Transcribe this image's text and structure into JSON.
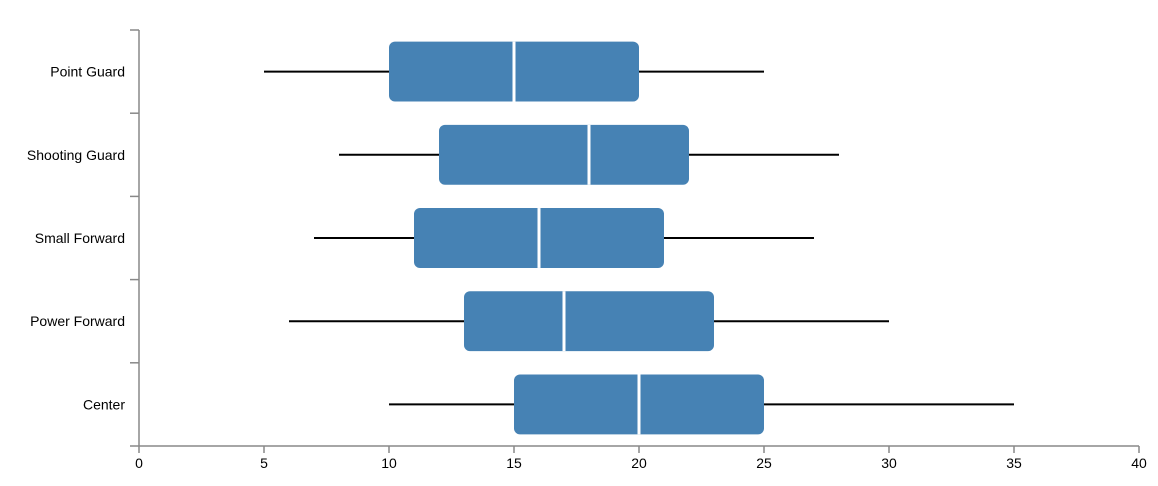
{
  "chart_data": {
    "type": "boxplot",
    "orientation": "horizontal",
    "categories": [
      "Point Guard",
      "Shooting Guard",
      "Small Forward",
      "Power Forward",
      "Center"
    ],
    "series": [
      {
        "boxes": [
          {
            "category": "Point Guard",
            "min": 5,
            "q1": 10,
            "median": 15,
            "q3": 20,
            "max": 25
          },
          {
            "category": "Shooting Guard",
            "min": 8,
            "q1": 12,
            "median": 18,
            "q3": 22,
            "max": 28
          },
          {
            "category": "Small Forward",
            "min": 7,
            "q1": 11,
            "median": 16,
            "q3": 21,
            "max": 27
          },
          {
            "category": "Power Forward",
            "min": 6,
            "q1": 13,
            "median": 17,
            "q3": 23,
            "max": 30
          },
          {
            "category": "Center",
            "min": 10,
            "q1": 15,
            "median": 20,
            "q3": 25,
            "max": 35
          }
        ]
      }
    ],
    "xlim": [
      0,
      40
    ],
    "xticks": [
      "0",
      "5",
      "10",
      "15",
      "20",
      "25",
      "30",
      "35",
      "40"
    ],
    "title": "",
    "xlabel": "",
    "ylabel": "",
    "grid": false,
    "colors": {
      "box": "#4682b4",
      "median": "#ffffff",
      "whisker": "#000000",
      "axis": "#888888"
    }
  }
}
